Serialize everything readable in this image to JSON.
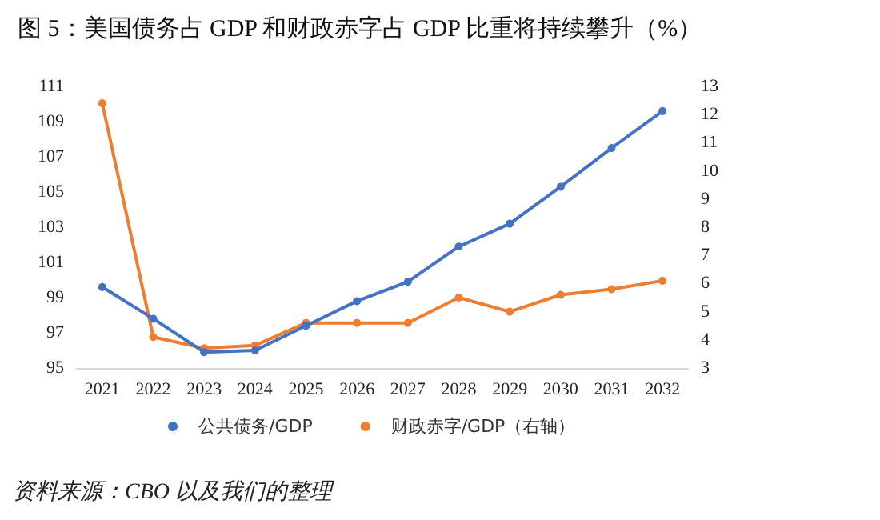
{
  "chart_data": {
    "type": "line",
    "title": "图 5：美国债务占 GDP 和财政赤字占 GDP 比重将持续攀升（%）",
    "categories": [
      "2021",
      "2022",
      "2023",
      "2024",
      "2025",
      "2026",
      "2027",
      "2028",
      "2029",
      "2030",
      "2031",
      "2032"
    ],
    "series": [
      {
        "name": "公共债务/GDP",
        "color": "#4472c4",
        "values": [
          99.6,
          97.8,
          95.9,
          96.0,
          97.4,
          98.8,
          99.9,
          101.9,
          103.2,
          105.3,
          107.5,
          109.6
        ]
      },
      {
        "name": "财政赤字/GDP（右轴）",
        "color": "#ed7d31",
        "axis": "y2",
        "values": [
          12.4,
          4.1,
          3.7,
          3.8,
          4.6,
          4.6,
          4.6,
          5.5,
          5.0,
          5.6,
          5.8,
          6.1
        ]
      }
    ],
    "ylim": [
      95,
      111
    ],
    "yticks": [
      95,
      97,
      99,
      101,
      103,
      105,
      107,
      109,
      111
    ],
    "y2lim": [
      3,
      13
    ],
    "y2ticks": [
      3,
      4,
      5,
      6,
      7,
      8,
      9,
      10,
      11,
      12,
      13
    ],
    "grid": false,
    "legend": "bottom",
    "marker": "circle",
    "line_style": "solid",
    "annotations": [
      "资料来源：CBO 以及我们的整理"
    ]
  }
}
